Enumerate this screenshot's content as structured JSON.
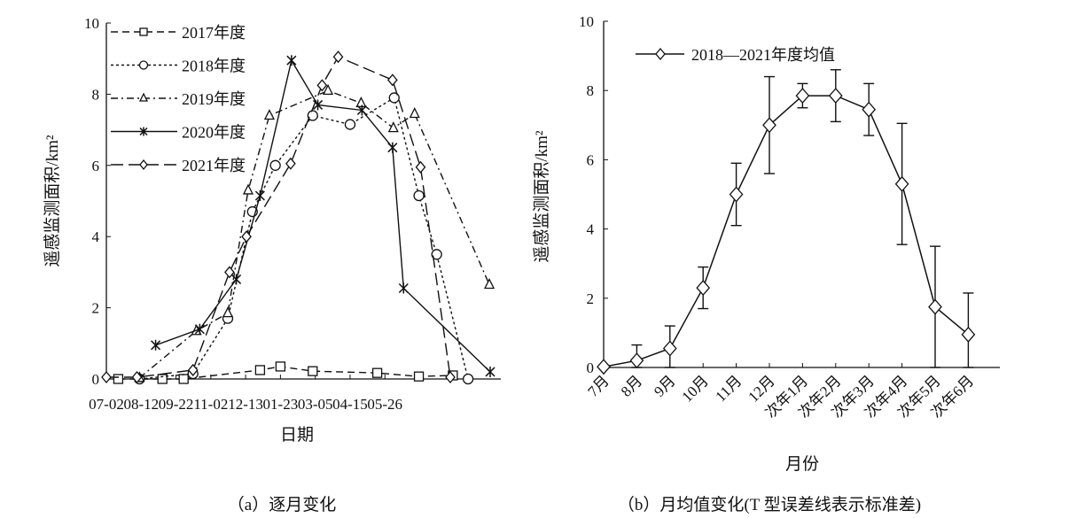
{
  "chart_data": [
    {
      "type": "line",
      "title": "",
      "caption": "（a）逐月变化",
      "xlabel": "日期",
      "ylabel": "遥感监测面积/km²",
      "ylim": [
        0,
        10
      ],
      "yticks": [
        "0",
        "2",
        "4",
        "6",
        "8",
        "10"
      ],
      "xlim_days_from_07_02": [
        0,
        464
      ],
      "xticks": [
        "07-02",
        "08-12",
        "09-22",
        "11-02",
        "12-13",
        "01-23",
        "03-05",
        "04-15",
        "05-26"
      ],
      "legend_position": "top-left",
      "series": [
        {
          "name": "2017年度",
          "marker": "square",
          "dash": "8,5",
          "x": [
            14,
            66,
            91,
            181,
            205,
            243,
            319,
            368,
            408
          ],
          "values": [
            0,
            0,
            0,
            0.25,
            0.35,
            0.22,
            0.17,
            0.07,
            0.1
          ]
        },
        {
          "name": "2018年度",
          "marker": "circle",
          "dash": "3,3",
          "x": [
            39,
            102,
            143,
            172,
            199,
            243,
            287,
            339,
            368,
            389,
            426
          ],
          "values": [
            0,
            0.15,
            1.7,
            4.7,
            6.0,
            7.4,
            7.15,
            7.9,
            5.15,
            3.5,
            0
          ]
        },
        {
          "name": "2019年度",
          "marker": "triangle",
          "dash": "8,4,2,4",
          "x": [
            39,
            106,
            143,
            167,
            192,
            261,
            300,
            338,
            363,
            451
          ],
          "values": [
            0.03,
            1.35,
            1.85,
            5.3,
            7.4,
            8.1,
            7.75,
            7.05,
            7.45,
            2.65
          ]
        },
        {
          "name": "2020年度",
          "marker": "star",
          "dash": "",
          "x": [
            58,
            110,
            153,
            181,
            218,
            249,
            301,
            337,
            350,
            452
          ],
          "values": [
            0.95,
            1.4,
            2.8,
            5.15,
            8.95,
            7.7,
            7.55,
            6.5,
            2.55,
            0.2
          ]
        },
        {
          "name": "2021年度",
          "marker": "diamond",
          "dash": "14,6",
          "x": [
            0,
            36,
            102,
            145,
            165,
            217,
            254,
            273,
            337,
            370,
            405
          ],
          "values": [
            0.05,
            0.05,
            0.25,
            3.0,
            4.0,
            6.05,
            8.25,
            9.05,
            8.4,
            5.95,
            0.05
          ]
        }
      ]
    },
    {
      "type": "line",
      "title": "",
      "caption": "（b）月均值变化(T 型误差线表示标准差)",
      "xlabel": "月份",
      "ylabel": "遥感监测面积/km²",
      "ylim": [
        0,
        10
      ],
      "yticks": [
        "0",
        "2",
        "4",
        "6",
        "8",
        "10"
      ],
      "categories": [
        "7月",
        "8月",
        "9月",
        "10月",
        "11月",
        "12月",
        "次年1月",
        "次年2月",
        "次年3月",
        "次年4月",
        "次年5月",
        "次年6月"
      ],
      "legend_position": "top-left",
      "series": [
        {
          "name": "2018—2021年度均值",
          "marker": "diamond",
          "values": [
            0.02,
            0.2,
            0.55,
            2.3,
            5.0,
            7.0,
            7.85,
            7.85,
            7.45,
            5.3,
            1.75,
            0.95
          ],
          "sd": [
            0,
            0.45,
            0.65,
            0.6,
            0.9,
            1.4,
            0.35,
            0.75,
            0.75,
            1.75,
            1.75,
            1.2
          ]
        }
      ]
    }
  ]
}
